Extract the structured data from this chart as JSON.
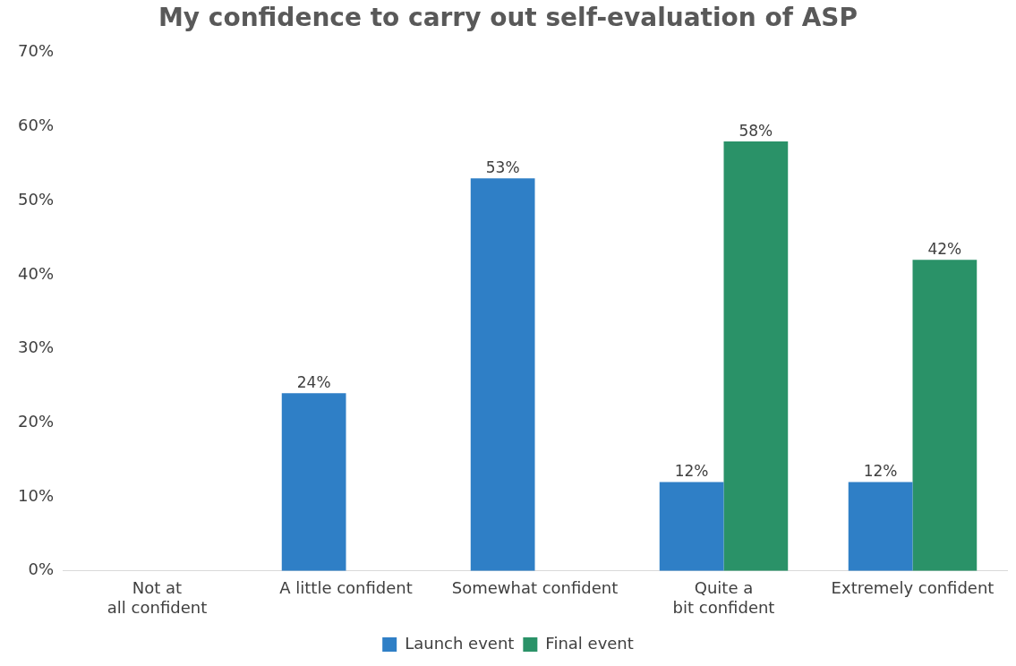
{
  "chart_data": {
    "type": "bar",
    "title": "My confidence to carry out self-evaluation of ASP",
    "categories": [
      "Not at all confident",
      "A little confident",
      "Somewhat confident",
      "Quite a bit confident",
      "Extremely confident"
    ],
    "series": [
      {
        "name": "Launch event",
        "color": "#2f7fc6",
        "values": [
          null,
          24,
          53,
          12,
          12
        ],
        "value_labels": [
          null,
          "24%",
          "53%",
          "12%",
          "12%"
        ]
      },
      {
        "name": "Final event",
        "color": "#2a9268",
        "values": [
          null,
          null,
          null,
          58,
          42
        ],
        "value_labels": [
          null,
          null,
          null,
          "58%",
          "42%"
        ]
      }
    ],
    "ylim": [
      0,
      70
    ],
    "yticks": [
      {
        "value": 0,
        "label": "0%"
      },
      {
        "value": 10,
        "label": "10%"
      },
      {
        "value": 20,
        "label": "20%"
      },
      {
        "value": 30,
        "label": "30%"
      },
      {
        "value": 40,
        "label": "40%"
      },
      {
        "value": 50,
        "label": "50%"
      },
      {
        "value": 60,
        "label": "60%"
      },
      {
        "value": 70,
        "label": "70%"
      }
    ],
    "grid": false,
    "legend": "bottom"
  }
}
